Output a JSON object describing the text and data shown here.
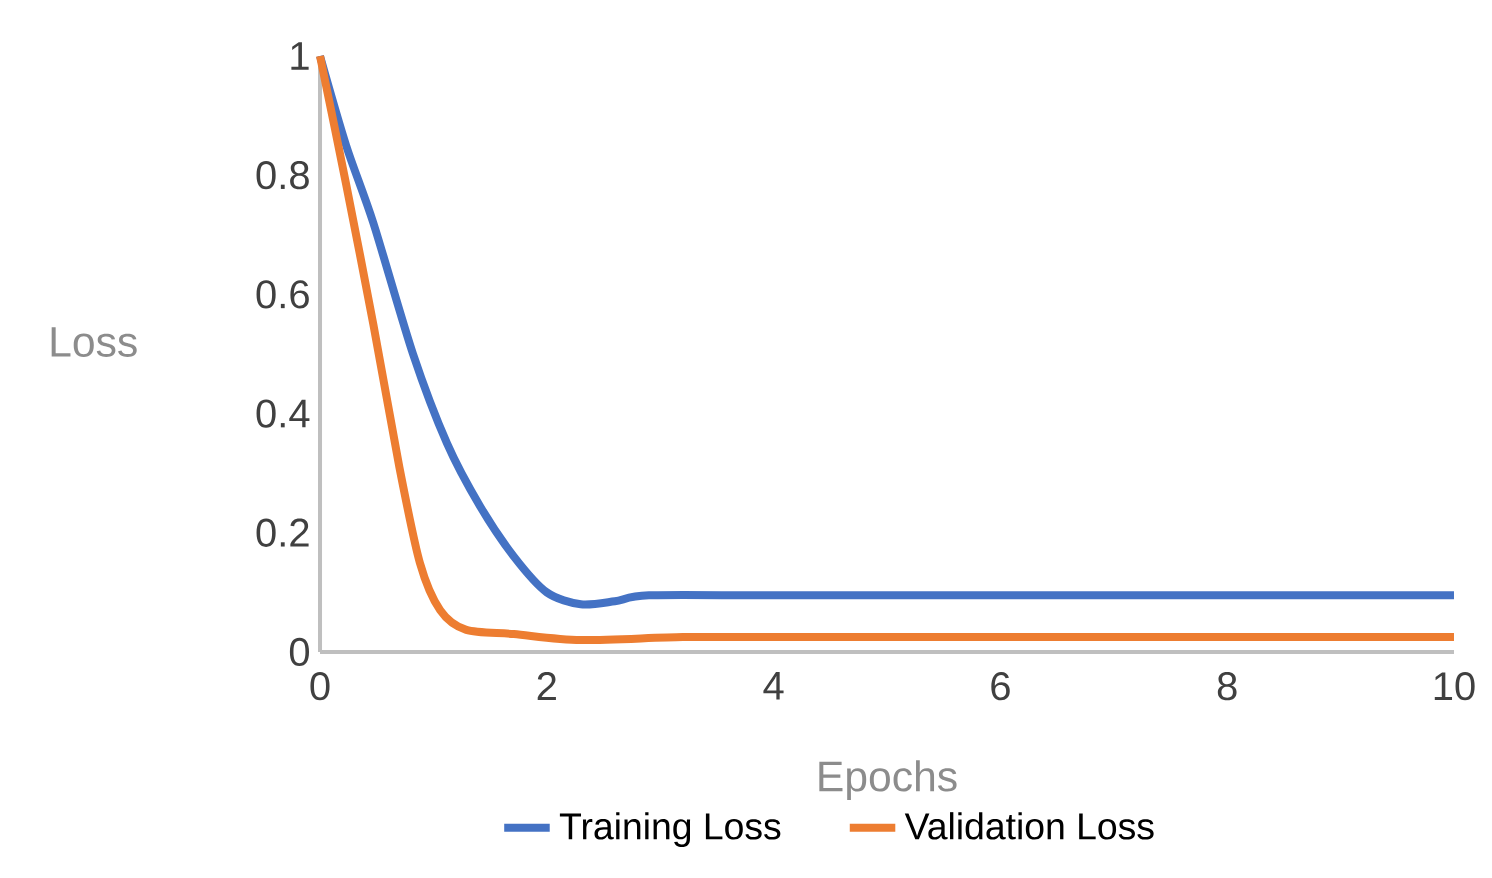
{
  "chart_data": {
    "type": "line",
    "xlabel": "Epochs",
    "ylabel": "Loss",
    "xlim": [
      0,
      10
    ],
    "ylim": [
      0,
      1
    ],
    "xticks": [
      0,
      2,
      4,
      6,
      8,
      10
    ],
    "yticks": [
      0,
      0.2,
      0.4,
      0.6,
      0.8,
      1
    ],
    "grid": false,
    "legend": "bottom",
    "marker": "none",
    "line_style": "solid",
    "series": [
      {
        "name": "Training Loss",
        "color": "#4472c4",
        "x": [
          0,
          0.23,
          0.47,
          0.82,
          1.12,
          1.41,
          1.71,
          2.0,
          2.3,
          2.6,
          2.9,
          4,
          6,
          8,
          10
        ],
        "values": [
          1,
          0.85,
          0.72,
          0.5,
          0.35,
          0.245,
          0.16,
          0.1,
          0.08,
          0.085,
          0.095,
          0.095,
          0.095,
          0.095,
          0.095
        ]
      },
      {
        "name": "Validation Loss",
        "color": "#ed7d31",
        "x": [
          0,
          0.23,
          0.47,
          0.7,
          0.88,
          1.06,
          1.29,
          1.71,
          2.3,
          3.2,
          4,
          6,
          8,
          10
        ],
        "values": [
          1,
          0.785,
          0.55,
          0.31,
          0.15,
          0.07,
          0.037,
          0.03,
          0.02,
          0.025,
          0.025,
          0.025,
          0.025,
          0.025
        ]
      }
    ]
  }
}
